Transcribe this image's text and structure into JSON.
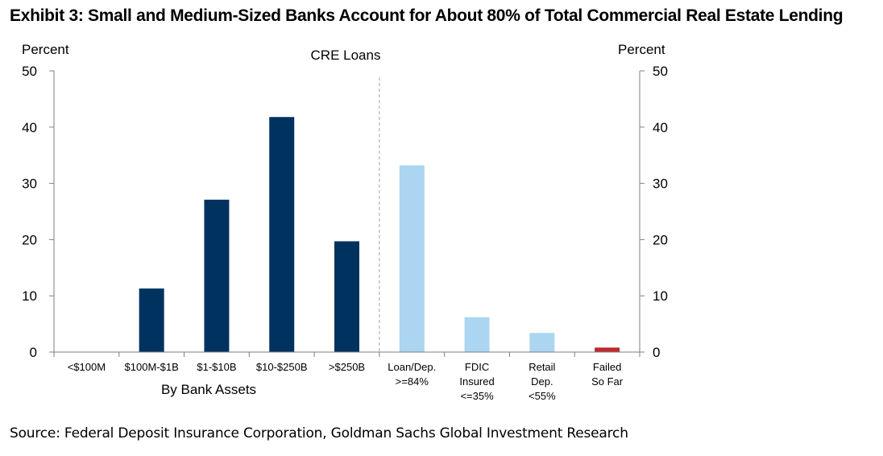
{
  "title": "Exhibit 3: Small and Medium-Sized Banks Account for About 80% of Total Commercial Real Estate Lending",
  "source": "Source: Federal Deposit Insurance Corporation, Goldman Sachs Global Investment Research",
  "colors": {
    "dark_bar": "#00325f",
    "light_bar": "#abd5f1",
    "red_bar": "#c0282c",
    "axis": "#7f7f7f",
    "divider": "#a6a6a6"
  },
  "chart_data": {
    "type": "bar",
    "title": "CRE Loans",
    "ylabel_left": "Percent",
    "ylabel_right": "Percent",
    "ylim": [
      0,
      50
    ],
    "yticks": [
      0,
      10,
      20,
      30,
      40,
      50
    ],
    "group_label": "By Bank Assets",
    "grid": false,
    "categories": [
      {
        "label": [
          "<$100M"
        ],
        "value": 0,
        "color": "dark"
      },
      {
        "label": [
          "$100M-$1B"
        ],
        "value": 11.3,
        "color": "dark"
      },
      {
        "label": [
          "$1-$10B"
        ],
        "value": 27.1,
        "color": "dark"
      },
      {
        "label": [
          "$10-$250B"
        ],
        "value": 41.8,
        "color": "dark"
      },
      {
        "label": [
          ">$250B"
        ],
        "value": 19.7,
        "color": "dark"
      },
      {
        "label": [
          "Loan/Dep.",
          ">=84%"
        ],
        "value": 33.2,
        "color": "light"
      },
      {
        "label": [
          "FDIC",
          "Insured",
          "<=35%"
        ],
        "value": 6.2,
        "color": "light"
      },
      {
        "label": [
          "Retail",
          "Dep.",
          "<55%"
        ],
        "value": 3.4,
        "color": "light"
      },
      {
        "label": [
          "Failed",
          "So Far"
        ],
        "value": 0.8,
        "color": "red"
      }
    ]
  }
}
